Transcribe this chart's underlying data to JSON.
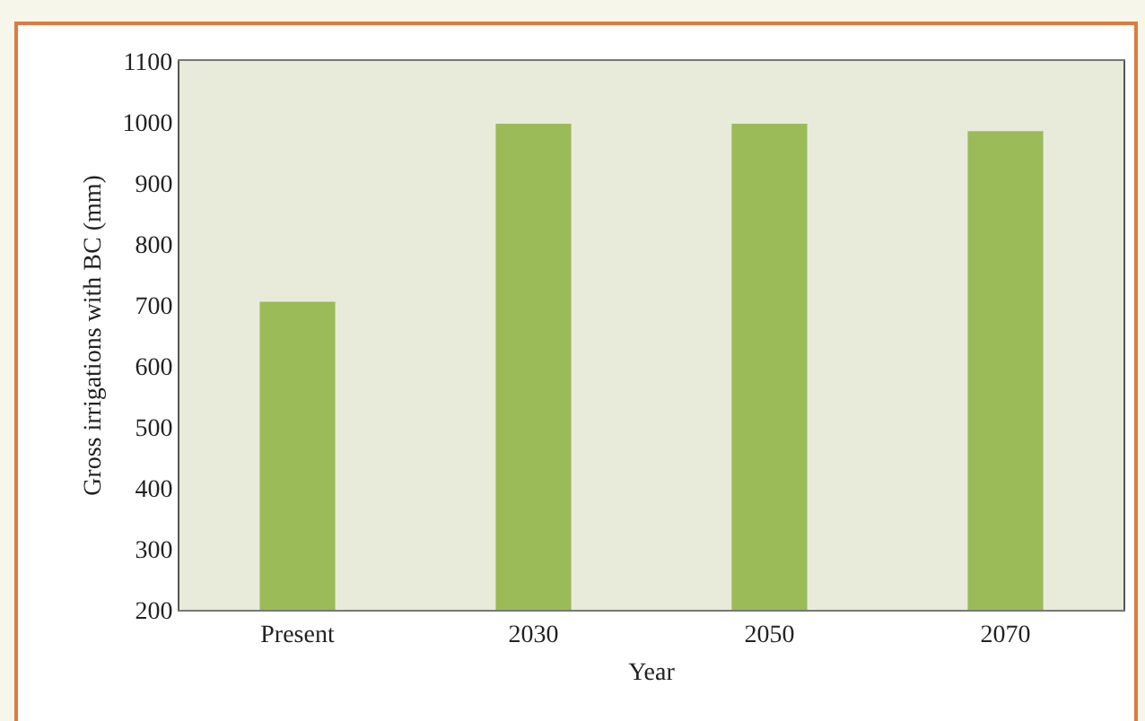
{
  "chart_data": {
    "type": "bar",
    "xlabel": "Year",
    "ylabel": "Gross irrigations with BC (mm)",
    "categories": [
      "Present",
      "2030",
      "2050",
      "2070"
    ],
    "values": [
      705,
      997,
      997,
      985
    ],
    "color": "#9bbb59",
    "ylim": [
      200,
      1100
    ],
    "yticks": [
      200,
      300,
      400,
      500,
      600,
      700,
      800,
      900,
      1000,
      1100
    ],
    "grid": false
  }
}
